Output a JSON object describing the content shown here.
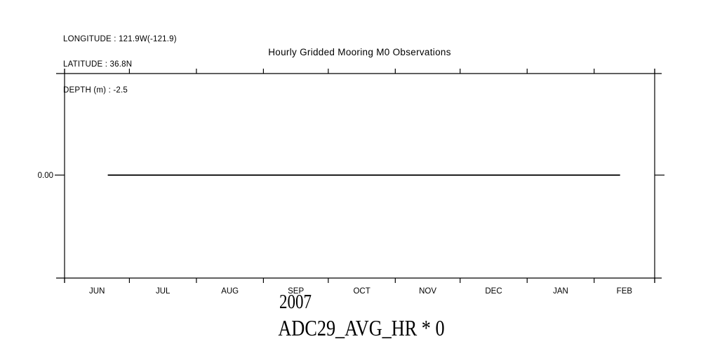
{
  "header": {
    "longitude": "LONGITUDE : 121.9W(-121.9)",
    "latitude": "LATITUDE : 36.8N",
    "depth": "DEPTH (m) : -2.5"
  },
  "chart_data": {
    "type": "line",
    "title": "Hourly Gridded Mooring M0 Observations",
    "series_label": "ADC29_AVG_HR * 0",
    "x_axis": {
      "year_label": "2007",
      "months": [
        "JUN",
        "JUL",
        "AUG",
        "SEP",
        "OCT",
        "NOV",
        "DEC",
        "JAN",
        "FEB"
      ],
      "month_day_counts": [
        30,
        31,
        31,
        30,
        31,
        30,
        31,
        31,
        28
      ],
      "range": "1 Jun 2007 to 1 Mar 2008",
      "grid": false
    },
    "y_axis": {
      "tick_labels": [
        "0.00"
      ],
      "tick_values": [
        0
      ]
    },
    "series": [
      {
        "name": "ADC29_AVG_HR * 0",
        "constant_value": 0,
        "x_unit": "days since 1 Jun 2007",
        "points": [
          {
            "day_index": 20,
            "value": 0
          },
          {
            "day_index": 257,
            "value": 0
          }
        ],
        "color": "#000000"
      }
    ],
    "colors": {
      "foreground": "#000000",
      "background": "#ffffff"
    },
    "legend": "none"
  }
}
